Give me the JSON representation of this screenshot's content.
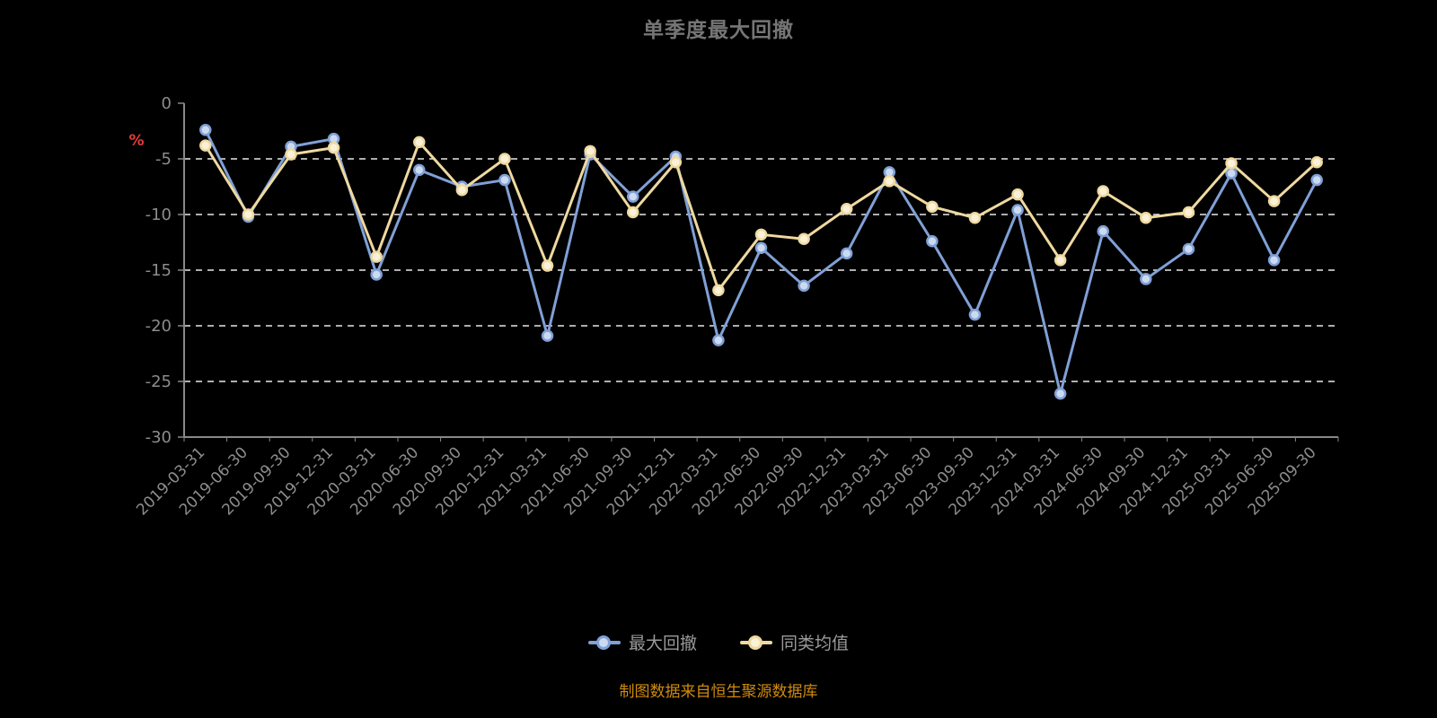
{
  "title": "单季度最大回撤",
  "footer": {
    "text": "制图数据来自恒生聚源数据库"
  },
  "colors": {
    "background": "#000000",
    "title": "#757575",
    "axis": "#888888",
    "axis_label": "#8c8c8c",
    "grid_line": "#e8e8e8",
    "unit": "#e23b3b",
    "footer": "#cf8a10",
    "legend_label": "#9a9a9a"
  },
  "y_axis": {
    "unit": "%",
    "ticks": [
      0,
      -5,
      -10,
      -15,
      -20,
      -25,
      -30
    ]
  },
  "chart_data": {
    "type": "line",
    "title": "单季度最大回撤",
    "xlabel": "",
    "ylabel": "%",
    "ylim": [
      -30,
      0
    ],
    "grid": true,
    "grid_style": "dashed",
    "legend_position": "bottom",
    "tick_label_rotate": 45,
    "categories": [
      "2019-03-31",
      "2019-06-30",
      "2019-09-30",
      "2019-12-31",
      "2020-03-31",
      "2020-06-30",
      "2020-09-30",
      "2020-12-31",
      "2021-03-31",
      "2021-06-30",
      "2021-09-30",
      "2021-12-31",
      "2022-03-31",
      "2022-06-30",
      "2022-09-30",
      "2022-12-31",
      "2023-03-31",
      "2023-06-30",
      "2023-09-30",
      "2023-12-31",
      "2024-03-31",
      "2024-06-30",
      "2024-09-30",
      "2024-12-31",
      "2025-03-31",
      "2025-06-30",
      "2025-09-30"
    ],
    "series": [
      {
        "name": "最大回撤",
        "key": "max-drawdown",
        "color": "#80a0d6",
        "marker_fill": "#ccdaf0",
        "values": [
          -2.4,
          -10.2,
          -3.9,
          -3.2,
          -15.4,
          -6.0,
          -7.5,
          -6.9,
          -20.9,
          -4.6,
          -8.4,
          -4.8,
          -21.3,
          -13.0,
          -16.4,
          -13.5,
          -6.2,
          -12.4,
          -19.0,
          -9.6,
          -26.1,
          -11.5,
          -15.8,
          -13.1,
          -6.3,
          -14.1,
          -6.9
        ]
      },
      {
        "name": "同类均值",
        "key": "peer-average",
        "color": "#efd9a0",
        "marker_fill": "#faf1d8",
        "values": [
          -3.8,
          -10.0,
          -4.6,
          -4.0,
          -13.8,
          -3.5,
          -7.8,
          -5.0,
          -14.6,
          -4.3,
          -9.8,
          -5.3,
          -16.8,
          -11.8,
          -12.2,
          -9.5,
          -7.0,
          -9.3,
          -10.3,
          -8.2,
          -14.1,
          -7.9,
          -10.3,
          -9.8,
          -5.4,
          -8.8,
          -5.3
        ]
      }
    ]
  }
}
